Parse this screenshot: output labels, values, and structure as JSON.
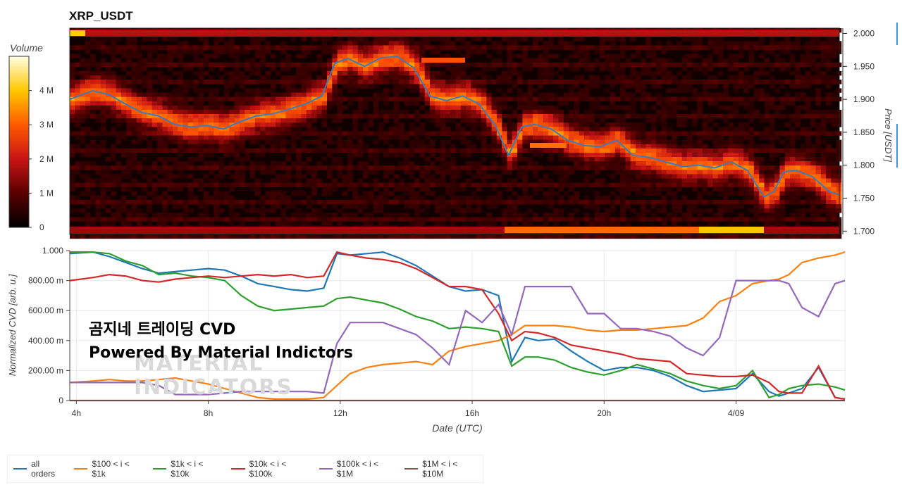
{
  "title": "XRP_USDT",
  "heatmap": {
    "colorbar_title": "Volume",
    "colorbar_ticks": [
      "0",
      "1 M",
      "2 M",
      "3 M",
      "4 M"
    ],
    "colorbar_max": 5,
    "price_axis_label": "Price [USDT]",
    "price_ticks": [
      "1.700",
      "1.750",
      "1.800",
      "1.850",
      "1.900",
      "1.950",
      "2.000"
    ],
    "price_range": [
      1.695,
      2.008
    ]
  },
  "cvd": {
    "ylabel": "Normalized CVD [arb. u.]",
    "yticks": [
      "0",
      "200.00 m",
      "400.00 m",
      "600.00 m",
      "800.00 m",
      "1.000"
    ],
    "xlabel": "Date (UTC)",
    "xticks": [
      "4h",
      "8h",
      "12h",
      "16h",
      "20h",
      "4/09"
    ],
    "overlay_line1": "곰지네 트레이딩 CVD",
    "overlay_line2": "Powered By Material Indictors",
    "watermark_line1": "MATERIAL",
    "watermark_line2": "INDICATORS"
  },
  "legend": [
    {
      "label": "all orders",
      "color": "#1f77b4"
    },
    {
      "label": "$100 < i < $1k",
      "color": "#ff7f0e"
    },
    {
      "label": "$1k < i < $10k",
      "color": "#2ca02c"
    },
    {
      "label": "$10k < i < $100k",
      "color": "#d62728"
    },
    {
      "label": "$100k < i < $1M",
      "color": "#9467bd"
    },
    {
      "label": "$1M < i < $10M",
      "color": "#8c564b"
    }
  ],
  "chart_data": [
    {
      "type": "heatmap",
      "title": "XRP_USDT",
      "x_range_hours": [
        3.8,
        27.3
      ],
      "ylabel": "Price [USDT]",
      "ylim": [
        1.695,
        2.008
      ],
      "colorbar": "Volume",
      "price_line": {
        "color": "#3a7bbf",
        "x_hours": [
          3.8,
          4.5,
          5.0,
          5.5,
          6.0,
          6.5,
          7.0,
          7.5,
          8.0,
          8.5,
          9.0,
          9.5,
          10.0,
          10.5,
          11.0,
          11.5,
          11.9,
          12.3,
          12.8,
          13.3,
          13.8,
          14.3,
          14.8,
          15.3,
          15.8,
          16.3,
          16.8,
          17.2,
          17.6,
          18.0,
          18.5,
          19.0,
          19.5,
          20.0,
          20.5,
          21.0,
          21.5,
          22.0,
          22.5,
          23.0,
          23.5,
          24.0,
          24.5,
          25.0,
          25.3,
          25.6,
          26.0,
          26.5,
          27.0,
          27.3
        ],
        "price": [
          1.9,
          1.913,
          1.907,
          1.893,
          1.88,
          1.875,
          1.862,
          1.858,
          1.86,
          1.855,
          1.866,
          1.875,
          1.878,
          1.885,
          1.893,
          1.905,
          1.955,
          1.962,
          1.95,
          1.963,
          1.965,
          1.948,
          1.905,
          1.898,
          1.905,
          1.893,
          1.86,
          1.815,
          1.858,
          1.862,
          1.855,
          1.838,
          1.83,
          1.828,
          1.838,
          1.815,
          1.812,
          1.805,
          1.798,
          1.8,
          1.796,
          1.805,
          1.792,
          1.752,
          1.76,
          1.79,
          1.792,
          1.782,
          1.76,
          1.755
        ]
      }
    },
    {
      "type": "line",
      "xlabel": "Date (UTC)",
      "ylabel": "Normalized CVD [arb. u.]",
      "ylim": [
        0,
        1.0
      ],
      "x_hours": [
        3.8,
        4.5,
        5.0,
        5.5,
        6.0,
        6.5,
        7.0,
        7.5,
        8.0,
        8.5,
        9.0,
        9.5,
        10.0,
        10.5,
        11.0,
        11.5,
        11.9,
        12.3,
        12.8,
        13.3,
        13.8,
        14.3,
        14.8,
        15.3,
        15.8,
        16.3,
        16.8,
        17.2,
        17.6,
        18.0,
        18.5,
        19.0,
        19.5,
        20.0,
        20.5,
        21.0,
        21.5,
        22.0,
        22.5,
        23.0,
        23.5,
        24.0,
        24.5,
        25.0,
        25.3,
        25.6,
        26.0,
        26.5,
        27.0,
        27.3
      ],
      "series": [
        {
          "name": "all orders",
          "values": [
            0.98,
            0.99,
            0.96,
            0.92,
            0.88,
            0.85,
            0.86,
            0.87,
            0.88,
            0.87,
            0.83,
            0.78,
            0.76,
            0.74,
            0.73,
            0.75,
            0.98,
            0.97,
            0.98,
            0.99,
            0.95,
            0.9,
            0.83,
            0.76,
            0.73,
            0.74,
            0.7,
            0.26,
            0.42,
            0.4,
            0.41,
            0.33,
            0.26,
            0.2,
            0.22,
            0.22,
            0.2,
            0.16,
            0.1,
            0.06,
            0.07,
            0.08,
            0.18,
            0.06,
            0.03,
            0.05,
            0.08,
            0.22,
            0.02,
            0.01
          ]
        },
        {
          "name": "$100 < i < $1k",
          "values": [
            0.12,
            0.13,
            0.14,
            0.13,
            0.13,
            0.14,
            0.15,
            0.13,
            0.11,
            0.08,
            0.05,
            0.02,
            0.01,
            0.01,
            0.01,
            0.02,
            0.1,
            0.18,
            0.22,
            0.24,
            0.25,
            0.26,
            0.24,
            0.33,
            0.36,
            0.38,
            0.4,
            0.44,
            0.5,
            0.5,
            0.5,
            0.49,
            0.47,
            0.46,
            0.47,
            0.47,
            0.48,
            0.49,
            0.5,
            0.55,
            0.66,
            0.7,
            0.78,
            0.8,
            0.81,
            0.84,
            0.92,
            0.95,
            0.97,
            0.99
          ]
        },
        {
          "name": "$1k < i < $10k",
          "values": [
            0.99,
            0.99,
            0.98,
            0.93,
            0.9,
            0.84,
            0.85,
            0.83,
            0.82,
            0.8,
            0.7,
            0.63,
            0.6,
            0.61,
            0.62,
            0.63,
            0.68,
            0.69,
            0.67,
            0.65,
            0.61,
            0.56,
            0.53,
            0.48,
            0.49,
            0.48,
            0.46,
            0.23,
            0.29,
            0.29,
            0.27,
            0.22,
            0.19,
            0.17,
            0.2,
            0.24,
            0.21,
            0.18,
            0.13,
            0.1,
            0.08,
            0.1,
            0.2,
            0.02,
            0.04,
            0.08,
            0.1,
            0.11,
            0.09,
            0.07
          ]
        },
        {
          "name": "$10k < i < $100k",
          "values": [
            0.8,
            0.82,
            0.84,
            0.83,
            0.8,
            0.79,
            0.81,
            0.82,
            0.83,
            0.82,
            0.83,
            0.84,
            0.83,
            0.84,
            0.82,
            0.83,
            0.99,
            0.97,
            0.95,
            0.94,
            0.92,
            0.88,
            0.82,
            0.76,
            0.76,
            0.74,
            0.58,
            0.4,
            0.46,
            0.45,
            0.42,
            0.37,
            0.35,
            0.33,
            0.31,
            0.28,
            0.27,
            0.26,
            0.18,
            0.17,
            0.16,
            0.16,
            0.17,
            0.12,
            0.06,
            0.05,
            0.05,
            0.23,
            0.02,
            0.01
          ]
        },
        {
          "name": "$100k < i < $1M",
          "values": [
            0.12,
            0.12,
            0.12,
            0.12,
            0.12,
            0.1,
            0.04,
            0.04,
            0.04,
            0.05,
            0.06,
            0.06,
            0.06,
            0.06,
            0.06,
            0.05,
            0.38,
            0.52,
            0.52,
            0.52,
            0.48,
            0.44,
            0.35,
            0.24,
            0.6,
            0.52,
            0.64,
            0.44,
            0.76,
            0.76,
            0.76,
            0.76,
            0.58,
            0.58,
            0.48,
            0.48,
            0.46,
            0.43,
            0.35,
            0.3,
            0.42,
            0.8,
            0.8,
            0.8,
            0.8,
            0.78,
            0.62,
            0.56,
            0.78,
            0.8
          ]
        },
        {
          "name": "$1M < i < $10M",
          "values": [
            0.0,
            0.0,
            0.0,
            0.0,
            0.0,
            0.0,
            0.0,
            0.0,
            0.0,
            0.0,
            0.0,
            0.0,
            0.0,
            0.0,
            0.0,
            0.0,
            0.0,
            0.0,
            0.0,
            0.0,
            0.0,
            0.0,
            0.0,
            0.0,
            0.0,
            0.0,
            0.0,
            0.0,
            0.0,
            0.0,
            0.0,
            0.0,
            0.0,
            0.0,
            0.0,
            0.0,
            0.0,
            0.0,
            0.0,
            0.0,
            0.0,
            0.0,
            0.0,
            0.0,
            0.0,
            0.0,
            0.0,
            0.0,
            0.0,
            0.0
          ]
        }
      ]
    }
  ]
}
